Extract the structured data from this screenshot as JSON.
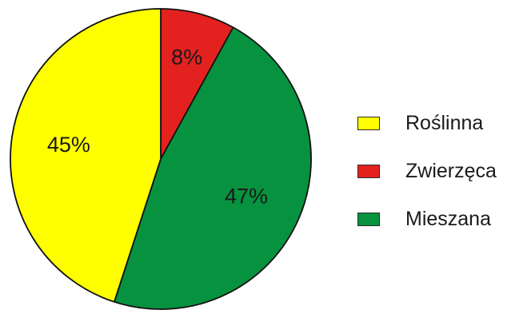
{
  "chart_data": {
    "type": "pie",
    "title": "",
    "slices": [
      {
        "label": "Roślinna",
        "value": 45,
        "display": "45%",
        "color": "#ffff00"
      },
      {
        "label": "Zwierzęca",
        "value": 8,
        "display": "8%",
        "color": "#e32220"
      },
      {
        "label": "Mieszana",
        "value": 47,
        "display": "47%",
        "color": "#07923f"
      }
    ],
    "start_slice": 1,
    "direction": "clockwise_from_top",
    "legend_position": "right"
  },
  "legend": {
    "items": [
      {
        "label": "Roślinna",
        "color": "#ffff00"
      },
      {
        "label": "Zwierzęca",
        "color": "#e32220"
      },
      {
        "label": "Mieszana",
        "color": "#07923f"
      }
    ]
  }
}
